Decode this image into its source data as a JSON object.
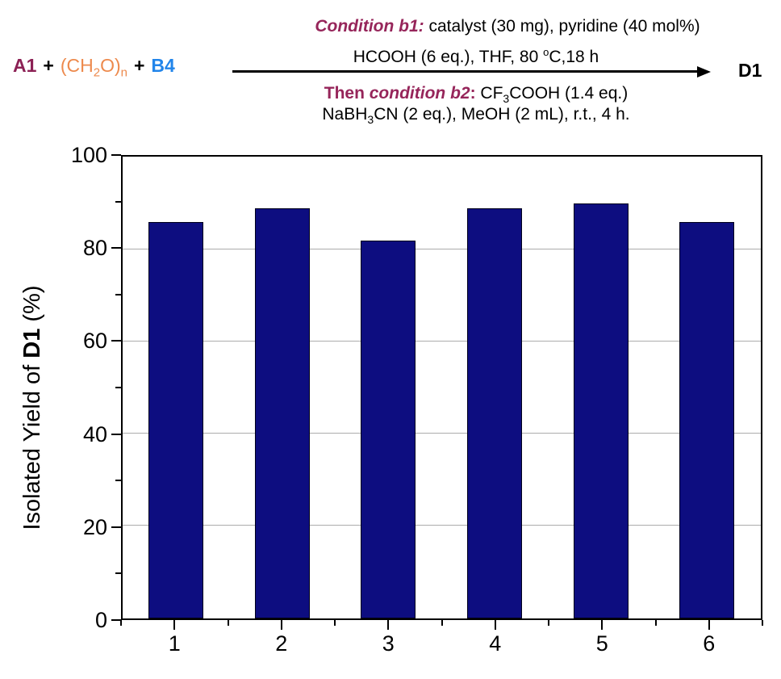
{
  "scheme": {
    "reactants": {
      "a": "A1",
      "plus": "+",
      "formaldehyde": {
        "open": "(CH",
        "sub_2": "2",
        "o_close": "O)",
        "sub_n": "n"
      },
      "b": "B4",
      "product": "D1"
    },
    "above_arrow": {
      "line1_label": "Condition b1:",
      "line1_text": " catalyst (30 mg), pyridine (40 mol%)",
      "line2_pre": "HCOOH (6 eq.), THF, 80 ",
      "line2_sup": "o",
      "line2_post": "C,18 h"
    },
    "below_arrow": {
      "line3_then": "Then",
      "line3_label": " condition b2",
      "line3_colon": ":",
      "line3_pre": " CF",
      "line3_sub": "3",
      "line3_post": "COOH (1.4 eq.)",
      "line4_pre": "NaBH",
      "line4_sub": "3",
      "line4_post": "CN (2 eq.), MeOH (2 mL), r.t., 4 h."
    },
    "colors": {
      "reactant_a": "#8C2155",
      "formaldehyde": "#ED8A4D",
      "reactant_b": "#2285EA",
      "condition": "#96255A"
    }
  },
  "chart_data": {
    "type": "bar",
    "categories": [
      "1",
      "2",
      "3",
      "4",
      "5",
      "6"
    ],
    "values": [
      86,
      89,
      82,
      89,
      90,
      86
    ],
    "title": "",
    "xlabel": "",
    "ylabel": {
      "pre": "Isolated Yield of ",
      "bold": "D1",
      "post": " (%)"
    },
    "ylim": [
      0,
      100
    ],
    "y_major_ticks": [
      0,
      20,
      40,
      60,
      80,
      100
    ],
    "y_minor_ticks": [
      10,
      30,
      50,
      70,
      90
    ],
    "gridlines": [
      20,
      40,
      60,
      80
    ],
    "grid_on": true,
    "legend_position": "none",
    "bar_color": "#0D0D80",
    "bar_border_color": "#00001A",
    "grid_color": "#ACACAC"
  }
}
